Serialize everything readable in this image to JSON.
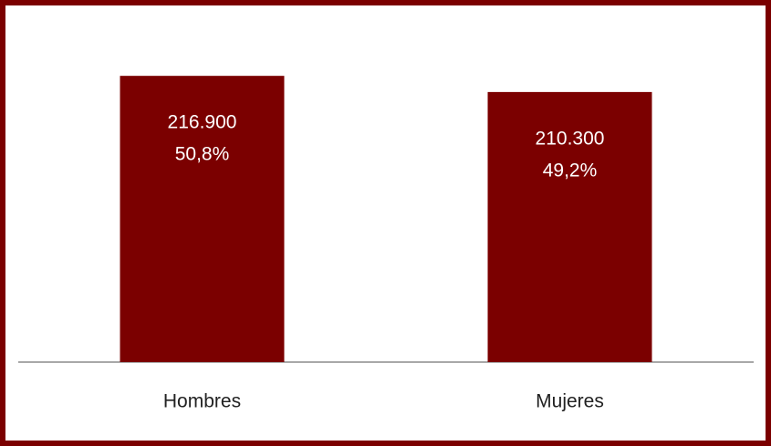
{
  "chart_data": {
    "type": "bar",
    "categories": [
      "Hombres",
      "Mujeres"
    ],
    "values": [
      216900,
      210300
    ],
    "value_labels": [
      "216.900",
      "210.300"
    ],
    "shares": [
      50.8,
      49.2
    ],
    "share_labels": [
      "50,8%",
      "49,2%"
    ],
    "color": "#7b0000",
    "ylim": [
      100000,
      230000
    ]
  }
}
